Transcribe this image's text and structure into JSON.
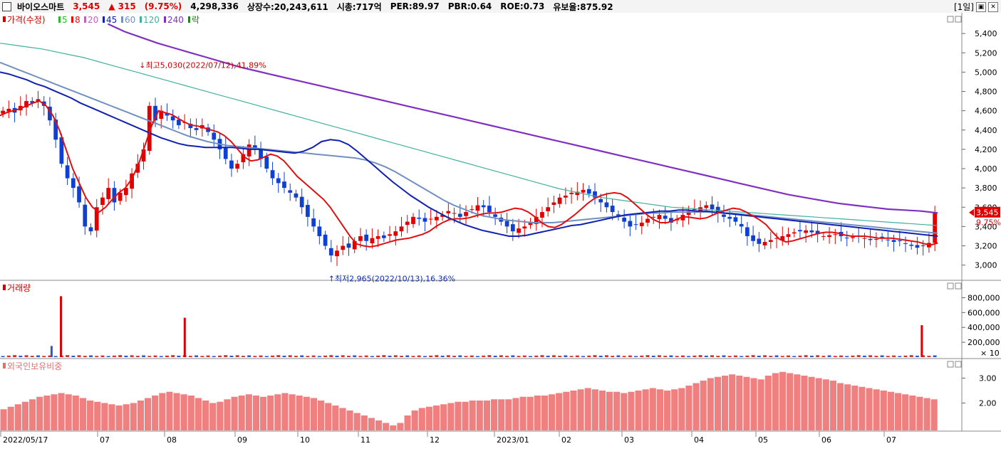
{
  "header": {
    "name": "바이오스마트",
    "price": "3,545",
    "change": "▲ 315",
    "change_pct": "(9.75%)",
    "volume": "4,298,336",
    "listed": "상장수:20,243,611",
    "mcap": "시총:717억",
    "per": "PER:89.97",
    "pbr": "PBR:0.64",
    "roe": "ROE:0.73",
    "float": "유보율:875.92",
    "period": "[1일]",
    "colors": {
      "up": "#e00000",
      "down": "#1040d0"
    }
  },
  "legend": {
    "price_label": "가격(수정)",
    "ma": [
      {
        "label": "5",
        "color": "#2db82d"
      },
      {
        "label": "8",
        "color": "#e01010"
      },
      {
        "label": "20",
        "color": "#c060c0"
      },
      {
        "label": "45",
        "color": "#1020b0"
      },
      {
        "label": "60",
        "color": "#7090c0"
      },
      {
        "label": "120",
        "color": "#40b0a0"
      },
      {
        "label": "240",
        "color": "#8030c0"
      }
    ],
    "extra_label": "락",
    "extra_color": "#208020"
  },
  "chart_data": [
    {
      "type": "candlestick",
      "ylim": [
        2850,
        5600
      ],
      "yticks": [
        "3,000",
        "3,200",
        "3,400",
        "3,600",
        "3,800",
        "4,000",
        "4,200",
        "4,400",
        "4,600",
        "4,800",
        "5,000",
        "5,200",
        "5,400"
      ],
      "last_price_label": "3,545",
      "last_pct_label": "9.75%",
      "high_annotation": "최고5,030(2022/07/12),41.89%",
      "low_annotation": "최저2,965(2022/10/13),16.36%",
      "close_series": [
        4600,
        4620,
        4580,
        4650,
        4700,
        4680,
        4720,
        4650,
        4500,
        4300,
        4050,
        3900,
        3800,
        3650,
        3400,
        3350,
        3600,
        3700,
        3800,
        3650,
        3750,
        3800,
        3950,
        4050,
        4200,
        4650,
        4500,
        4600,
        4550,
        4500,
        4450,
        4480,
        4420,
        4400,
        4450,
        4380,
        4300,
        4200,
        4100,
        4000,
        4050,
        4150,
        4250,
        4200,
        4100,
        4000,
        3900,
        3850,
        3800,
        3750,
        3700,
        3600,
        3500,
        3400,
        3300,
        3200,
        3100,
        3150,
        3200,
        3180,
        3250,
        3300,
        3250,
        3280,
        3300,
        3280,
        3320,
        3350,
        3400,
        3450,
        3500,
        3480,
        3450,
        3480,
        3500,
        3520,
        3560,
        3540,
        3500,
        3550,
        3580,
        3620,
        3600,
        3550,
        3500,
        3450,
        3400,
        3350,
        3380,
        3400,
        3450,
        3500,
        3550,
        3600,
        3650,
        3700,
        3720,
        3750,
        3760,
        3780,
        3740,
        3700,
        3650,
        3600,
        3550,
        3500,
        3450,
        3400,
        3420,
        3440,
        3480,
        3500,
        3520,
        3480,
        3440,
        3480,
        3520,
        3560,
        3580,
        3600,
        3620,
        3580,
        3540,
        3500,
        3480,
        3450,
        3400,
        3300,
        3250,
        3220,
        3240,
        3260,
        3280,
        3300,
        3320,
        3340,
        3350,
        3360,
        3340,
        3320,
        3300,
        3310,
        3320,
        3300,
        3280,
        3290,
        3300,
        3280,
        3260,
        3270,
        3280,
        3260,
        3240,
        3250,
        3220,
        3200,
        3180,
        3200,
        3230,
        3545
      ],
      "ohlc_summary": {
        "high": 5030,
        "low": 2965,
        "last": 3545
      },
      "ma_series": {
        "ma8": [
          4550,
          4580,
          4600,
          4620,
          4650,
          4680,
          4700,
          4650,
          4550,
          4400,
          4200,
          4000,
          3850,
          3700,
          3600,
          3550,
          3600,
          3680,
          3750,
          3800,
          3900,
          4050,
          4250,
          4450,
          4600,
          4580,
          4560,
          4520,
          4480,
          4450,
          4440,
          4420,
          4400,
          4380,
          4340,
          4280,
          4200,
          4120,
          4080,
          4090,
          4120,
          4150,
          4130,
          4080,
          4000,
          3920,
          3860,
          3800,
          3740,
          3680,
          3600,
          3500,
          3400,
          3300,
          3220,
          3200,
          3190,
          3200,
          3220,
          3240,
          3260,
          3270,
          3280,
          3300,
          3320,
          3350,
          3400,
          3440,
          3470,
          3480,
          3480,
          3490,
          3510,
          3530,
          3540,
          3540,
          3550,
          3570,
          3590,
          3580,
          3550,
          3500,
          3440,
          3400,
          3390,
          3420,
          3470,
          3520,
          3580,
          3640,
          3690,
          3720,
          3740,
          3750,
          3740,
          3700,
          3640,
          3580,
          3520,
          3470,
          3440,
          3440,
          3460,
          3490,
          3500,
          3490,
          3480,
          3490,
          3520,
          3550,
          3570,
          3590,
          3580,
          3550,
          3510,
          3470,
          3420,
          3340,
          3270,
          3240,
          3250,
          3270,
          3290,
          3310,
          3330,
          3340,
          3340,
          3330,
          3310,
          3300,
          3300,
          3300,
          3290,
          3280,
          3280,
          3280,
          3270,
          3260,
          3250,
          3240,
          3220,
          3210,
          3230
        ],
        "ma45": [
          5000,
          4980,
          4950,
          4920,
          4880,
          4850,
          4810,
          4770,
          4730,
          4680,
          4640,
          4600,
          4560,
          4520,
          4480,
          4440,
          4400,
          4360,
          4320,
          4290,
          4260,
          4240,
          4230,
          4220,
          4220,
          4220,
          4220,
          4210,
          4200,
          4200,
          4190,
          4180,
          4170,
          4160,
          4180,
          4220,
          4280,
          4300,
          4290,
          4250,
          4180,
          4100,
          4020,
          3940,
          3860,
          3790,
          3720,
          3660,
          3600,
          3550,
          3500,
          3460,
          3420,
          3390,
          3360,
          3340,
          3320,
          3300,
          3300,
          3310,
          3330,
          3350,
          3370,
          3390,
          3410,
          3420,
          3440,
          3460,
          3480,
          3500,
          3520,
          3530,
          3540,
          3550,
          3560,
          3560,
          3570,
          3570,
          3560,
          3560,
          3550,
          3540,
          3530,
          3520,
          3510,
          3500,
          3490,
          3480,
          3470,
          3460,
          3450,
          3440,
          3430,
          3420,
          3410,
          3400,
          3390,
          3380,
          3370,
          3360,
          3350,
          3340,
          3330,
          3320,
          3310,
          3300
        ],
        "ma60": [
          5100,
          5060,
          5020,
          4980,
          4940,
          4900,
          4860,
          4820,
          4780,
          4740,
          4700,
          4660,
          4620,
          4580,
          4540,
          4500,
          4460,
          4420,
          4380,
          4340,
          4310,
          4280,
          4260,
          4240,
          4230,
          4220,
          4210,
          4200,
          4190,
          4180,
          4170,
          4160,
          4150,
          4140,
          4130,
          4120,
          4110,
          4090,
          4060,
          4020,
          3970,
          3910,
          3850,
          3790,
          3730,
          3670,
          3620,
          3580,
          3540,
          3510,
          3490,
          3470,
          3460,
          3450,
          3440,
          3440,
          3440,
          3450,
          3460,
          3470,
          3480,
          3490,
          3500,
          3510,
          3520,
          3530,
          3540,
          3540,
          3550,
          3550,
          3550,
          3550,
          3550,
          3540,
          3540,
          3530,
          3520,
          3510,
          3500,
          3490,
          3480,
          3470,
          3460,
          3450,
          3440,
          3430,
          3420,
          3410,
          3400,
          3390,
          3380,
          3370,
          3360,
          3350,
          3340,
          3330
        ],
        "ma120": [
          5300,
          5280,
          5260,
          5240,
          5210,
          5180,
          5150,
          5110,
          5070,
          5030,
          4990,
          4950,
          4910,
          4870,
          4830,
          4790,
          4750,
          4710,
          4670,
          4630,
          4590,
          4550,
          4510,
          4470,
          4430,
          4390,
          4350,
          4310,
          4270,
          4230,
          4190,
          4150,
          4110,
          4070,
          4030,
          3990,
          3950,
          3910,
          3870,
          3830,
          3790,
          3760,
          3730,
          3700,
          3680,
          3660,
          3640,
          3620,
          3600,
          3590,
          3580,
          3570,
          3560,
          3550,
          3540,
          3530,
          3520,
          3510,
          3500,
          3490,
          3480,
          3470,
          3460,
          3450,
          3440,
          3430,
          3420,
          3410
        ],
        "ma240": [
          5500,
          5420,
          5360,
          5300,
          5250,
          5200,
          5150,
          5100,
          5050,
          5010,
          4970,
          4930,
          4890,
          4850,
          4810,
          4770,
          4730,
          4690,
          4650,
          4610,
          4570,
          4530,
          4490,
          4450,
          4410,
          4370,
          4330,
          4290,
          4250,
          4210,
          4170,
          4130,
          4090,
          4050,
          4010,
          3970,
          3930,
          3890,
          3850,
          3810,
          3770,
          3730,
          3700,
          3670,
          3640,
          3620,
          3600,
          3580,
          3570,
          3560,
          3540
        ]
      }
    },
    {
      "type": "bar",
      "title": "거래량",
      "yticks": [
        "200,000",
        "400,000",
        "600,000",
        "800,000"
      ],
      "unit_label": "× 10",
      "ylim": [
        0,
        900000
      ],
      "spikes": [
        {
          "t": 0.065,
          "value": 820000
        },
        {
          "t": 0.197,
          "value": 530000
        },
        {
          "t": 0.983,
          "value": 430000
        },
        {
          "t": 0.055,
          "value": 150000
        }
      ],
      "baseline": 15000
    },
    {
      "type": "bar",
      "title": "외국인보유비중",
      "yticks": [
        "2.00",
        "3.00"
      ],
      "ylim": [
        0.9,
        3.5
      ],
      "values": [
        1.75,
        1.85,
        1.95,
        2.05,
        2.15,
        2.25,
        2.3,
        2.35,
        2.4,
        2.35,
        2.3,
        2.2,
        2.1,
        2.05,
        2.0,
        1.95,
        1.9,
        1.95,
        2.0,
        2.1,
        2.2,
        2.3,
        2.4,
        2.45,
        2.4,
        2.35,
        2.3,
        2.2,
        2.1,
        2.0,
        2.05,
        2.15,
        2.25,
        2.3,
        2.35,
        2.3,
        2.25,
        2.3,
        2.35,
        2.4,
        2.35,
        2.3,
        2.25,
        2.2,
        2.1,
        2.0,
        1.9,
        1.8,
        1.7,
        1.6,
        1.5,
        1.4,
        1.3,
        1.2,
        1.1,
        1.2,
        1.5,
        1.7,
        1.8,
        1.85,
        1.9,
        1.95,
        2.0,
        2.05,
        2.05,
        2.1,
        2.1,
        2.1,
        2.15,
        2.15,
        2.15,
        2.2,
        2.25,
        2.25,
        2.3,
        2.3,
        2.35,
        2.4,
        2.45,
        2.5,
        2.55,
        2.6,
        2.55,
        2.5,
        2.45,
        2.45,
        2.4,
        2.45,
        2.5,
        2.55,
        2.6,
        2.55,
        2.5,
        2.55,
        2.6,
        2.7,
        2.8,
        2.9,
        3.0,
        3.05,
        3.1,
        3.15,
        3.1,
        3.05,
        3.0,
        2.95,
        3.1,
        3.2,
        3.25,
        3.2,
        3.15,
        3.1,
        3.05,
        3.0,
        2.95,
        2.9,
        2.8,
        2.75,
        2.7,
        2.65,
        2.6,
        2.55,
        2.5,
        2.45,
        2.4,
        2.35,
        2.3,
        2.25,
        2.2,
        2.15
      ]
    }
  ],
  "x_axis": {
    "labels": [
      "2022/05/17",
      "07",
      "08",
      "09",
      "10",
      "11",
      "12",
      "2023/01",
      "02",
      "03",
      "04",
      "05",
      "06",
      "07"
    ],
    "colors": {
      "price_panel_bg": "#ffffff",
      "grid": "#d8d8d8"
    }
  }
}
